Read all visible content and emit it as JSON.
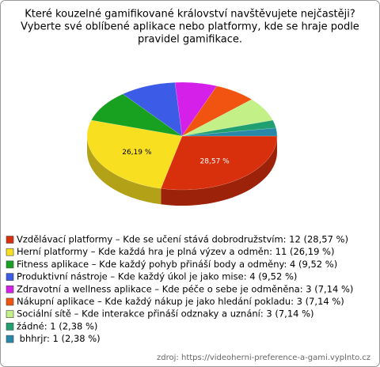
{
  "chart_data": {
    "type": "pie3d",
    "title": [
      "Které kouzelné gamifikované království navštěvujete nejčastěji?",
      "Vyberte své oblíbené aplikace nebo platformy, kde se hraje podle",
      "pravidel gamifikace."
    ],
    "categories": [
      "Vzdělávací platformy – Kde se učení stává dobrodružstvím: 12 (28,57 %)",
      "Herní platformy – Kde každá hra je plná výzev a odměn: 11 (26,19 %)",
      "Fitness aplikace – Kde každý pohyb přináší body a odměny: 4 (9,52 %)",
      "Produktivní nástroje – Kde každý úkol je jako mise: 4 (9,52 %)",
      "Zdravotní a wellness aplikace – Kde péče o sebe je odměněna: 3 (7,14 %)",
      "Nákupní aplikace – Kde každý nákup je jako hledání pokladu: 3 (7,14 %)",
      "Sociální sítě – Kde interakce přináší odznaky a uznání: 3 (7,14 %)",
      "žádné: 1 (2,38 %)",
      " bhhrjr: 1 (2,38 %)"
    ],
    "values": [
      28.57,
      26.19,
      9.52,
      9.52,
      7.14,
      7.14,
      7.14,
      2.38,
      2.38
    ],
    "value_labels": [
      "28,57 %",
      "26,19 %",
      null,
      null,
      null,
      null,
      null,
      null,
      null
    ],
    "colors": [
      "#d8300c",
      "#f8e020",
      "#18a020",
      "#3c5ce8",
      "#d420e8",
      "#f05410",
      "#c4f088",
      "#20a070",
      "#2888a8"
    ],
    "source": "zdroj: https://videoherni-preference-a-gami.vyplnto.cz"
  }
}
